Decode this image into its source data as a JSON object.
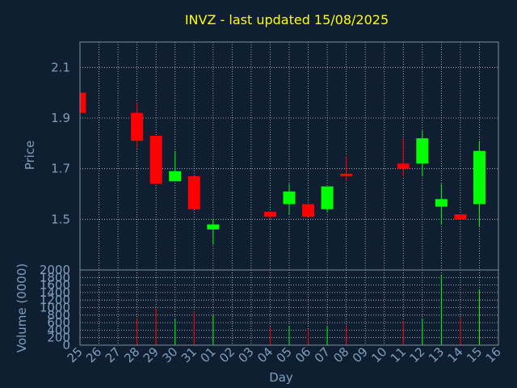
{
  "chart_data": {
    "type": "candlestick",
    "title": "INVZ - last updated 15/08/2025",
    "price_ylabel": "Price",
    "volume_ylabel": "Volume (0000)",
    "xlabel": "Day",
    "categories": [
      "25",
      "26",
      "27",
      "28",
      "29",
      "30",
      "31",
      "01",
      "02",
      "03",
      "04",
      "05",
      "06",
      "07",
      "08",
      "09",
      "10",
      "11",
      "12",
      "13",
      "14",
      "15",
      "16"
    ],
    "price_ylim": [
      1.3,
      2.2
    ],
    "price_yticks": [
      "1.5",
      "1.7",
      "1.9",
      "2.1"
    ],
    "volume_ylim": [
      0,
      2000
    ],
    "volume_yticks": [
      "0",
      "200",
      "400",
      "600",
      "800",
      "1000",
      "1200",
      "1400",
      "1600",
      "1800",
      "2000"
    ],
    "colors": {
      "up": "#00ff00",
      "down": "#ff0000",
      "title": "#ffff00",
      "axis_text": "#7f9fbf",
      "background": "#0f1e30"
    },
    "candles": [
      {
        "day": "25",
        "open": 2.0,
        "high": 2.0,
        "low": 1.92,
        "close": 1.92
      },
      {
        "day": "28",
        "open": 1.92,
        "high": 1.96,
        "low": 1.78,
        "close": 1.81
      },
      {
        "day": "29",
        "open": 1.83,
        "high": 1.83,
        "low": 1.64,
        "close": 1.64
      },
      {
        "day": "30",
        "open": 1.65,
        "high": 1.77,
        "low": 1.65,
        "close": 1.69
      },
      {
        "day": "31",
        "open": 1.67,
        "high": 1.67,
        "low": 1.54,
        "close": 1.54
      },
      {
        "day": "01",
        "open": 1.46,
        "high": 1.5,
        "low": 1.4,
        "close": 1.48
      },
      {
        "day": "04",
        "open": 1.53,
        "high": 1.53,
        "low": 1.5,
        "close": 1.51
      },
      {
        "day": "05",
        "open": 1.56,
        "high": 1.64,
        "low": 1.52,
        "close": 1.61
      },
      {
        "day": "06",
        "open": 1.56,
        "high": 1.56,
        "low": 1.51,
        "close": 1.51
      },
      {
        "day": "07",
        "open": 1.54,
        "high": 1.63,
        "low": 1.53,
        "close": 1.63
      },
      {
        "day": "08",
        "open": 1.68,
        "high": 1.75,
        "low": 1.65,
        "close": 1.67
      },
      {
        "day": "11",
        "open": 1.72,
        "high": 1.82,
        "low": 1.67,
        "close": 1.7
      },
      {
        "day": "12",
        "open": 1.72,
        "high": 1.85,
        "low": 1.67,
        "close": 1.82
      },
      {
        "day": "13",
        "open": 1.55,
        "high": 1.64,
        "low": 1.48,
        "close": 1.58
      },
      {
        "day": "14",
        "open": 1.52,
        "high": 1.52,
        "low": 1.5,
        "close": 1.5
      },
      {
        "day": "15",
        "open": 1.56,
        "high": 1.81,
        "low": 1.47,
        "close": 1.77
      }
    ],
    "volume": [
      {
        "day": "28",
        "value": 730
      },
      {
        "day": "29",
        "value": 980
      },
      {
        "day": "30",
        "value": 690
      },
      {
        "day": "31",
        "value": 900
      },
      {
        "day": "01",
        "value": 800
      },
      {
        "day": "04",
        "value": 490
      },
      {
        "day": "05",
        "value": 510
      },
      {
        "day": "06",
        "value": 430
      },
      {
        "day": "07",
        "value": 500
      },
      {
        "day": "08",
        "value": 540
      },
      {
        "day": "11",
        "value": 650
      },
      {
        "day": "12",
        "value": 700
      },
      {
        "day": "13",
        "value": 1880
      },
      {
        "day": "14",
        "value": 730
      },
      {
        "day": "15",
        "value": 1490
      }
    ]
  }
}
